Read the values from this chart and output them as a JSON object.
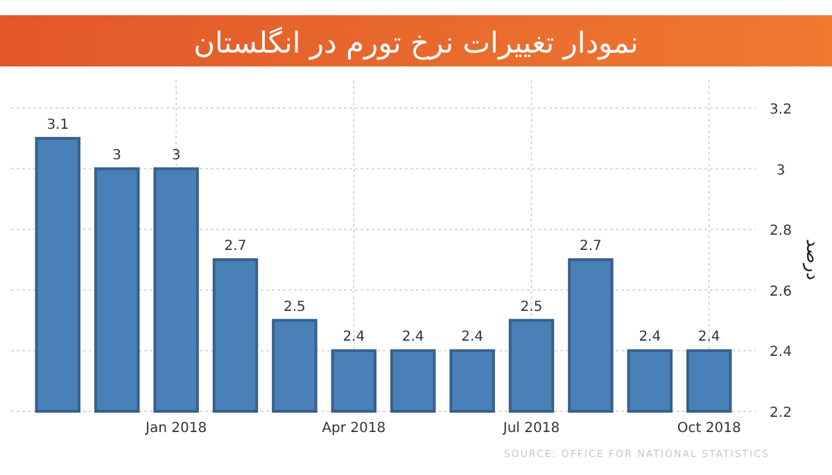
{
  "chart_data": {
    "type": "bar",
    "title": "نمودار تغییرات نرخ تورم در انگلستان",
    "ylabel": "درصد",
    "categories": [
      null,
      null,
      "Jan 2018",
      null,
      null,
      "Apr 2018",
      null,
      null,
      "Jul 2018",
      null,
      null,
      "Oct 2018"
    ],
    "values": [
      3.1,
      3,
      3,
      2.7,
      2.5,
      2.4,
      2.4,
      2.4,
      2.5,
      2.7,
      2.4,
      2.4
    ],
    "color": "#4a80b8",
    "ylim": [
      2.2,
      3.2
    ],
    "yticks": [
      2.2,
      2.4,
      2.6,
      2.8,
      3,
      3.2
    ],
    "grid": true,
    "data_labels": true,
    "annotations": [
      "SOURCE: OFFICE FOR NATIONAL STATISTICS"
    ]
  }
}
